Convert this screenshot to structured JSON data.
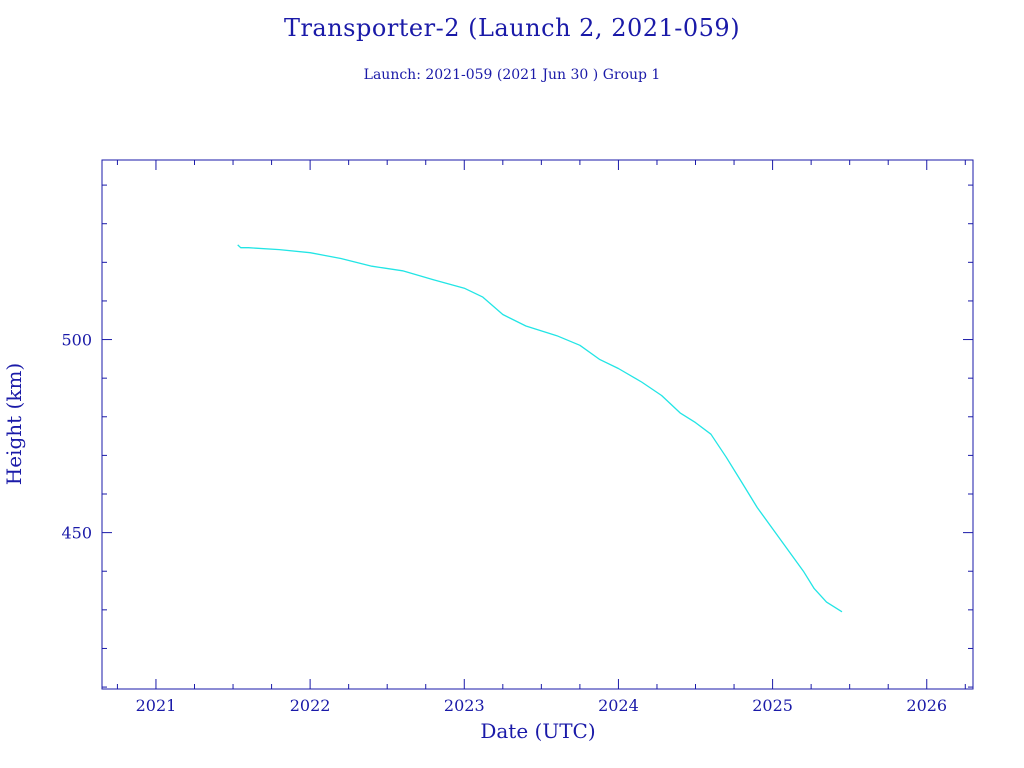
{
  "title": "Transporter-2 (Launch 2, 2021-059)",
  "subtitle": "Launch: 2021-059  (2021 Jun 30 )  Group 1",
  "colors": {
    "axis": "#1a1aa8",
    "series": "#22e5e5",
    "background": "#ffffff"
  },
  "chart_data": {
    "type": "line",
    "title": "Transporter-2 (Launch 2, 2021-059)",
    "subtitle": "Launch: 2021-059  (2021 Jun 30 )  Group 1",
    "xlabel": "Date (UTC)",
    "ylabel": "Height (km)",
    "xlim": [
      2020.65,
      2026.3
    ],
    "ylim": [
      409.5,
      546.5
    ],
    "xticks": [
      2021,
      2022,
      2023,
      2024,
      2025,
      2026
    ],
    "xtick_labels": [
      "2021",
      "2022",
      "2023",
      "2024",
      "2025",
      "2026"
    ],
    "yticks": [
      450,
      500
    ],
    "ytick_labels": [
      "450",
      "500"
    ],
    "grid": false,
    "series": [
      {
        "name": "",
        "x": [
          2021.53,
          2021.55,
          2021.6,
          2021.8,
          2022.0,
          2022.2,
          2022.4,
          2022.6,
          2022.8,
          2023.0,
          2023.12,
          2023.25,
          2023.4,
          2023.6,
          2023.75,
          2023.88,
          2024.0,
          2024.15,
          2024.28,
          2024.4,
          2024.5,
          2024.6,
          2024.7,
          2024.8,
          2024.9,
          2025.0,
          2025.1,
          2025.2,
          2025.27,
          2025.35,
          2025.45
        ],
        "y": [
          524.5,
          523.8,
          523.8,
          523.3,
          522.5,
          521.0,
          519.0,
          517.8,
          515.5,
          513.3,
          511.0,
          506.5,
          503.5,
          501.0,
          498.5,
          494.8,
          492.5,
          489.0,
          485.5,
          481.0,
          478.5,
          475.5,
          469.5,
          463.0,
          456.5,
          451.0,
          445.5,
          440.0,
          435.5,
          432.0,
          429.5
        ]
      }
    ]
  }
}
